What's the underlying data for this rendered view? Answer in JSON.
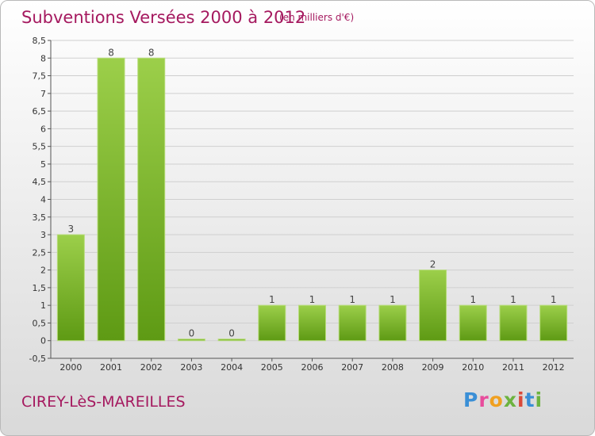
{
  "header": {
    "title": "Subventions Versées 2000 à 2012",
    "unit": "(en milliers d'€)"
  },
  "footer": {
    "city": "CIREY-LèS-MAREILLES",
    "logo_text": "Proxiti"
  },
  "colors": {
    "title": "#a5195f",
    "bar_top": "#9ccf4a",
    "bar_bottom": "#5e9a14"
  },
  "chart_data": {
    "type": "bar",
    "title": "Subventions Versées 2000 à 2012",
    "subtitle": "(en milliers d'€)",
    "xlabel": "",
    "ylabel": "",
    "categories": [
      "2000",
      "2001",
      "2002",
      "2003",
      "2004",
      "2005",
      "2006",
      "2007",
      "2008",
      "2009",
      "2010",
      "2011",
      "2012"
    ],
    "values": [
      3,
      8,
      8,
      0,
      0,
      1,
      1,
      1,
      1,
      2,
      1,
      1,
      1
    ],
    "ylim": [
      -0.5,
      8.5
    ],
    "yticks": [
      "-0,5",
      "0",
      "0,5",
      "1",
      "1,5",
      "2",
      "2,5",
      "3",
      "3,5",
      "4",
      "4,5",
      "5",
      "5,5",
      "6",
      "6,5",
      "7",
      "7,5",
      "8",
      "8,5"
    ],
    "grid": true,
    "legend": "none"
  }
}
